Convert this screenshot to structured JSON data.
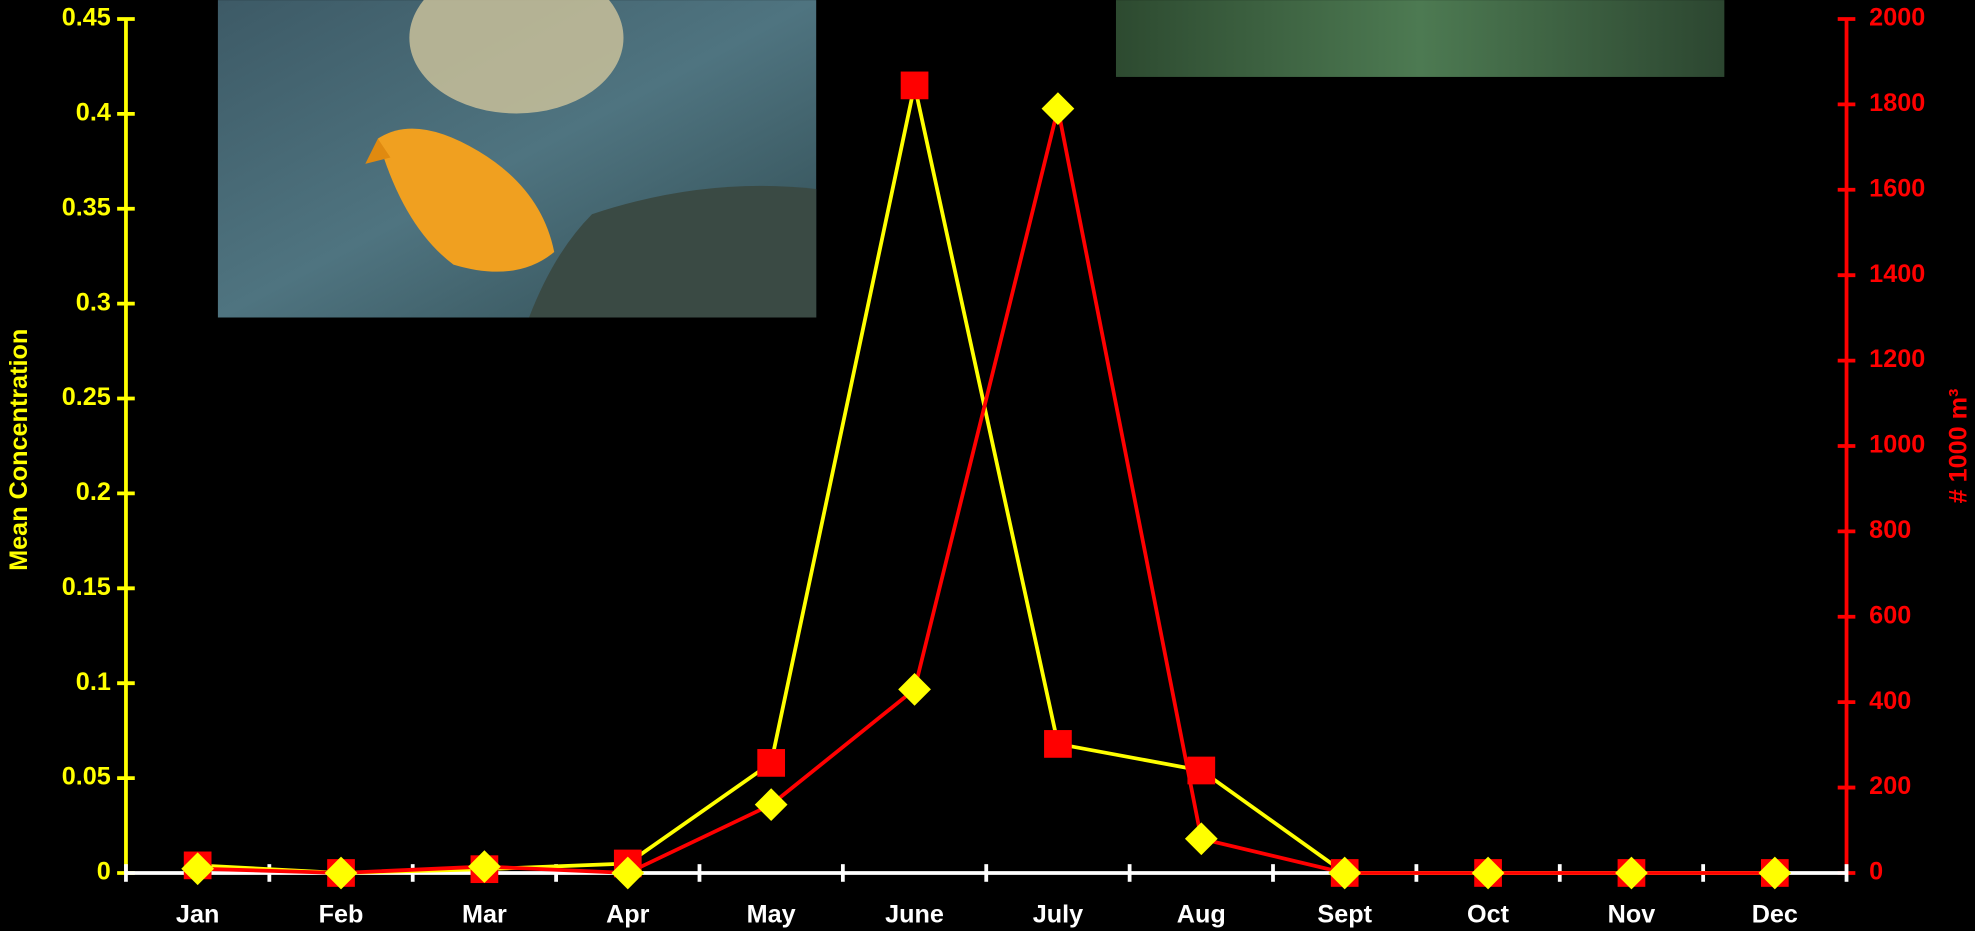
{
  "chart_data": {
    "type": "line",
    "categories": [
      "Jan",
      "Feb",
      "Mar",
      "Apr",
      "May",
      "June",
      "July",
      "Aug",
      "Sept",
      "Oct",
      "Nov",
      "Dec"
    ],
    "ylabel": "Mean Concentration",
    "y2label": "# 1000 m³",
    "ylim": [
      0,
      0.45
    ],
    "yticks": [
      0,
      0.05,
      0.1,
      0.15,
      0.2,
      0.25,
      0.3,
      0.35,
      0.4,
      0.45
    ],
    "y2lim": [
      0,
      2000
    ],
    "y2ticks": [
      0,
      200,
      400,
      600,
      800,
      1000,
      1200,
      1400,
      1600,
      1800,
      2000
    ],
    "axis_color": "#ffff00",
    "axis2_color": "#ff0000",
    "xaxis_color": "#ffffff",
    "series": [
      {
        "color": "#ffff00",
        "marker": "square",
        "marker_color": "#ff0000",
        "values": [
          0.004,
          0,
          0.002,
          0.005,
          0.058,
          0.415,
          0.068,
          0.054,
          0,
          0,
          0,
          0
        ]
      },
      {
        "color": "#ff0000",
        "marker": "diamond",
        "marker_color": "#ffff00",
        "axis": "y2",
        "values": [
          10,
          0,
          15,
          0,
          160,
          430,
          1790,
          80,
          0,
          0,
          0,
          0
        ]
      }
    ]
  }
}
